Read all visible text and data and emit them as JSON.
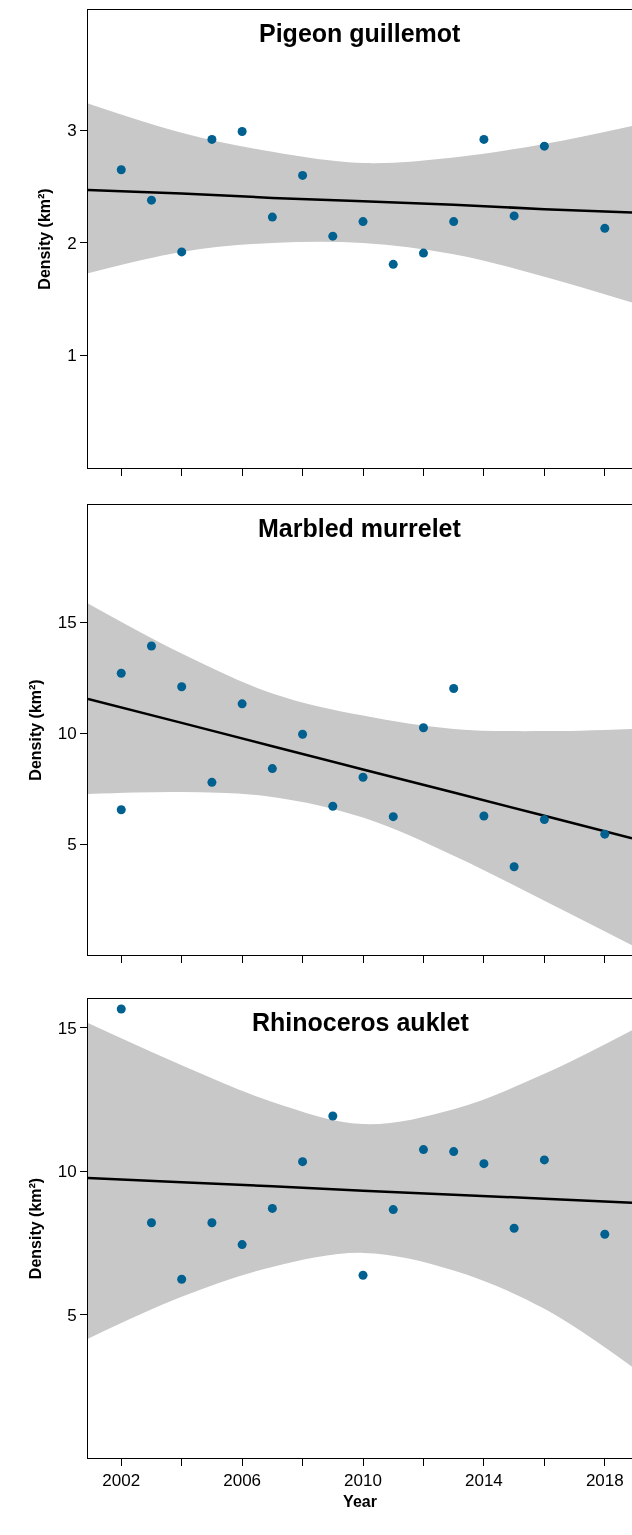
{
  "chart_data": [
    {
      "type": "scatter",
      "title": "Pigeon guillemot",
      "ylabel": "Density (km²)",
      "xlim": [
        2000.9,
        2018.9
      ],
      "xticks": [
        {
          "value": 2002,
          "label": null
        },
        {
          "value": 2004,
          "label": null
        },
        {
          "value": 2006,
          "label": null
        },
        {
          "value": 2008,
          "label": null
        },
        {
          "value": 2010,
          "label": null
        },
        {
          "value": 2012,
          "label": null
        },
        {
          "value": 2014,
          "label": null
        },
        {
          "value": 2016,
          "label": null
        },
        {
          "value": 2018,
          "label": null
        }
      ],
      "ylim": [
        0,
        4.07
      ],
      "yticks": [
        1,
        2,
        3
      ],
      "tick_labels": "y",
      "x": [
        2002,
        2003,
        2004,
        2005,
        2006,
        2007,
        2008,
        2009,
        2010,
        2011,
        2012,
        2013,
        2014,
        2015,
        2016,
        2018
      ],
      "series": [
        {
          "color": "#00608f",
          "marker": "circle",
          "values": [
            2.65,
            2.38,
            1.92,
            2.92,
            2.99,
            2.23,
            2.6,
            2.06,
            2.19,
            1.81,
            1.91,
            2.19,
            2.92,
            2.24,
            2.86,
            2.13
          ]
        },
        {
          "type": "line",
          "marker": "none",
          "color": "#000000",
          "x": [
            2000.9,
            2004,
            2007,
            2010,
            2013,
            2016,
            2018.9
          ],
          "values": [
            2.47,
            2.44,
            2.4,
            2.37,
            2.34,
            2.3,
            2.27
          ],
          "lower": [
            1.73,
            1.92,
            2.0,
            2.0,
            1.9,
            1.7,
            1.47
          ],
          "upper": [
            3.24,
            2.98,
            2.81,
            2.71,
            2.76,
            2.88,
            3.04
          ]
        }
      ]
    },
    {
      "type": "scatter",
      "title": "Marbled murrelet",
      "ylabel": "Density (km²)",
      "xlim": [
        2000.9,
        2018.9
      ],
      "xticks": [
        {
          "value": 2002,
          "label": null
        },
        {
          "value": 2004,
          "label": null
        },
        {
          "value": 2006,
          "label": null
        },
        {
          "value": 2008,
          "label": null
        },
        {
          "value": 2010,
          "label": null
        },
        {
          "value": 2012,
          "label": null
        },
        {
          "value": 2014,
          "label": null
        },
        {
          "value": 2016,
          "label": null
        },
        {
          "value": 2018,
          "label": null
        }
      ],
      "ylim": [
        0,
        20.3
      ],
      "yticks": [
        5,
        10,
        15
      ],
      "tick_labels": "y",
      "x": [
        2002,
        2002,
        2003,
        2004,
        2005,
        2006,
        2007,
        2008,
        2009,
        2010,
        2011,
        2012,
        2013,
        2014,
        2015,
        2016,
        2018
      ],
      "series": [
        {
          "color": "#00608f",
          "marker": "circle",
          "values": [
            12.71,
            6.55,
            13.94,
            12.1,
            7.79,
            11.33,
            8.41,
            9.96,
            6.71,
            8.02,
            6.24,
            10.25,
            12.02,
            6.27,
            3.98,
            6.11,
            5.45
          ]
        },
        {
          "type": "line",
          "marker": "none",
          "color": "#000000",
          "x": [
            2000.9,
            2004,
            2007,
            2010,
            2013,
            2016,
            2018.9
          ],
          "values": [
            11.55,
            10.47,
            9.42,
            8.37,
            7.33,
            6.28,
            5.27
          ],
          "lower": [
            7.26,
            7.35,
            7.13,
            6.2,
            4.48,
            2.45,
            0.44
          ],
          "upper": [
            15.86,
            13.6,
            11.8,
            10.8,
            10.2,
            10.1,
            10.2
          ]
        }
      ]
    },
    {
      "type": "scatter",
      "title": "Rhinoceros auklet",
      "xlabel": "Year",
      "ylabel": "Density (km²)",
      "xlim": [
        2000.9,
        2018.9
      ],
      "xticks": [
        2002,
        {
          "value": 2004,
          "label": null
        },
        2006,
        {
          "value": 2008,
          "label": null
        },
        2010,
        {
          "value": 2012,
          "label": null
        },
        2014,
        {
          "value": 2016,
          "label": null
        },
        2018
      ],
      "ylim": [
        0,
        16
      ],
      "yticks": [
        5,
        10,
        15
      ],
      "x": [
        2002,
        2003,
        2004,
        2005,
        2006,
        2007,
        2008,
        2009,
        2010,
        2011,
        2012,
        2013,
        2014,
        2015,
        2016,
        2018
      ],
      "series": [
        {
          "color": "#00608f",
          "marker": "circle",
          "values": [
            15.65,
            8.2,
            6.23,
            8.2,
            7.44,
            8.7,
            10.33,
            11.92,
            6.37,
            8.66,
            10.75,
            10.68,
            10.26,
            8.01,
            10.39,
            7.8
          ]
        },
        {
          "type": "line",
          "marker": "none",
          "color": "#000000",
          "x": [
            2000.9,
            2004,
            2007,
            2010,
            2013,
            2016,
            2018.9
          ],
          "values": [
            9.76,
            9.61,
            9.47,
            9.32,
            9.18,
            9.04,
            8.9
          ],
          "lower": [
            4.16,
            5.62,
            6.66,
            7.15,
            6.54,
            5.2,
            3.18
          ],
          "upper": [
            15.16,
            13.69,
            12.41,
            11.64,
            12.16,
            13.39,
            14.91
          ]
        }
      ]
    }
  ]
}
